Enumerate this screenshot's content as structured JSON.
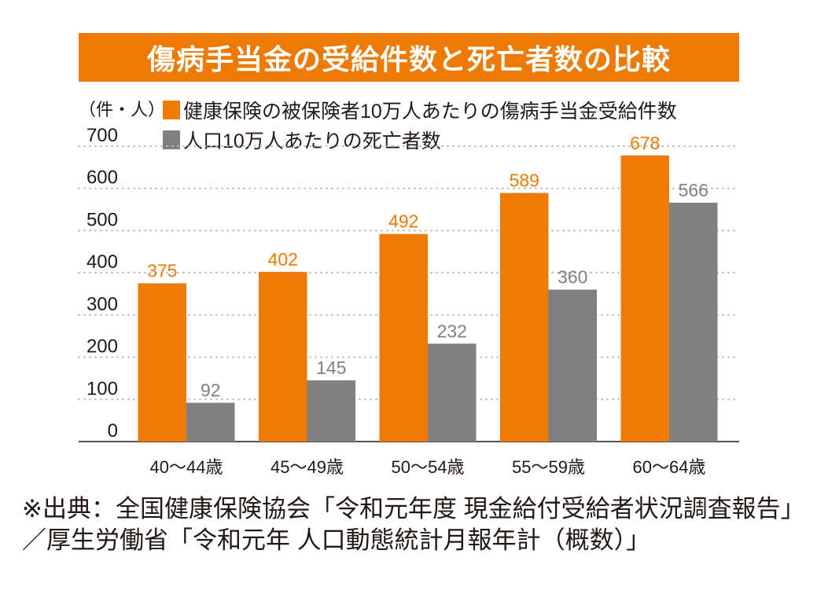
{
  "colors": {
    "accent": "#ED7A05",
    "gray": "#808080",
    "title_bg": "#ED7A05"
  },
  "title": "傷病手当金の受給件数と死亡者数の比較",
  "unit_label": "（件・人）",
  "source": "※出典：全国健康保険協会「令和元年度 現金給付受給者状況調査報告」／厚生労働省「令和元年 人口動態統計月報年計（概数）」",
  "chart_data": {
    "type": "bar",
    "title": "傷病手当金の受給件数と死亡者数の比較",
    "ylabel": "（件・人）",
    "xlabel": "",
    "categories": [
      "40〜44歳",
      "45〜49歳",
      "50〜54歳",
      "55〜59歳",
      "60〜64歳"
    ],
    "series": [
      {
        "name": "健康保険の被保険者10万人あたりの傷病手当金受給件数",
        "color": "#ED7A05",
        "values": [
          375,
          402,
          492,
          589,
          678
        ]
      },
      {
        "name": "人口10万人あたりの死亡者数",
        "color": "#808080",
        "values": [
          92,
          145,
          232,
          360,
          566
        ]
      }
    ],
    "ylim": [
      0,
      700
    ],
    "yticks": [
      "0",
      "100",
      "200",
      "300",
      "400",
      "500",
      "600",
      "700"
    ],
    "grid": true,
    "legend": "top-left",
    "data_labels": true
  }
}
